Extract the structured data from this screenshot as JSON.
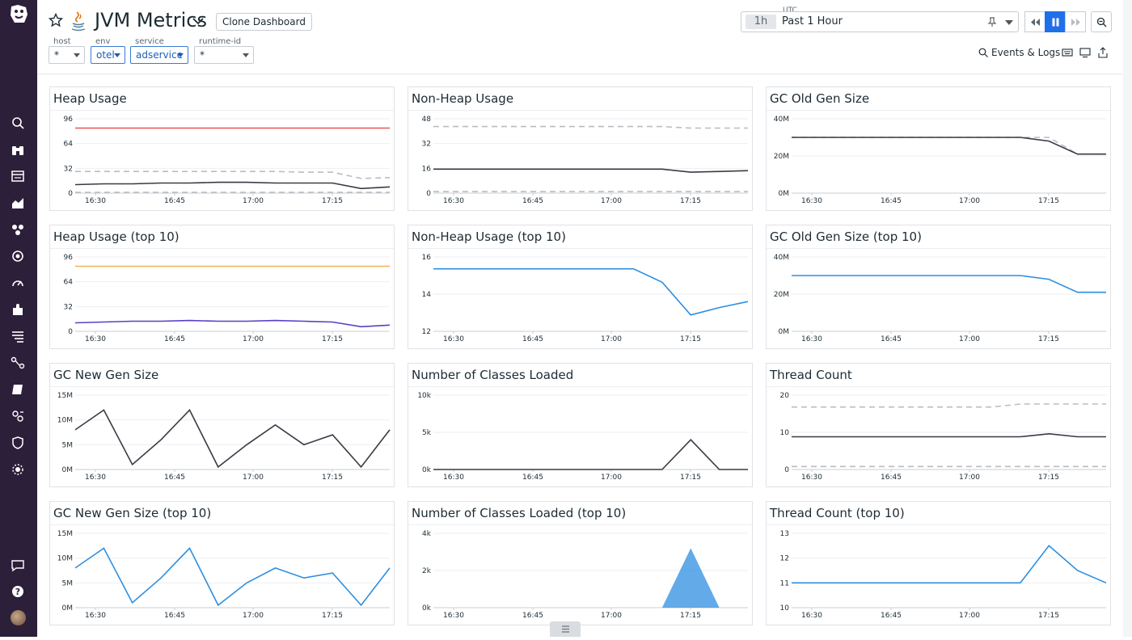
{
  "header": {
    "title": "JVM Metrics",
    "clone_label": "Clone Dashboard",
    "template_vars": [
      {
        "name": "host",
        "value": "*"
      },
      {
        "name": "env",
        "value": "otel"
      },
      {
        "name": "service",
        "value": "adservice"
      },
      {
        "name": "runtime-id",
        "value": "*"
      }
    ],
    "time": {
      "zone": "UTC",
      "short": "1h",
      "range": "Past 1 Hour"
    },
    "events_label": "Events & Logs"
  },
  "colors": {
    "accent": "#1f6feb",
    "sidebar": "#2c1f3a",
    "series_dark": "#3a3a44",
    "series_blue": "#2d8fe0",
    "series_grey": "#b8bcc2",
    "red": "#e8554e",
    "orange": "#f0b35a",
    "purple": "#5b3fc4"
  },
  "icons": [
    "datadog-logo",
    "search-icon",
    "binoculars-icon",
    "list-icon",
    "dashboard-icon",
    "infrastructure-icon",
    "apm-icon",
    "monitor-icon",
    "integrations-icon",
    "logs-icon",
    "network-icon",
    "notebook-icon",
    "synthetics-icon",
    "security-icon",
    "settings-icon",
    "chat-icon",
    "help-icon"
  ],
  "x_ticks": [
    "16:30",
    "16:45",
    "17:00",
    "17:15"
  ],
  "panels": [
    {
      "title": "Heap Usage",
      "chart_data": {
        "type": "line",
        "y_ticks": [
          "96",
          "64",
          "32",
          "0"
        ],
        "ylim": [
          0,
          96
        ],
        "series": [
          {
            "color": "#e8554e",
            "values": [
              84,
              84,
              84,
              84,
              84,
              84,
              84,
              84,
              84,
              84,
              84,
              84
            ]
          },
          {
            "color": "#b8bcc2",
            "dashed": true,
            "values": [
              28,
              28,
              28,
              28,
              28,
              28,
              28,
              28,
              27,
              27,
              19,
              20
            ]
          },
          {
            "color": "#3a3a44",
            "values": [
              11,
              12,
              12,
              13,
              13,
              14,
              14,
              13,
              13,
              13,
              6,
              8
            ]
          },
          {
            "color": "#b8bcc2",
            "dashed": true,
            "values": [
              1,
              1,
              1,
              1,
              1,
              1,
              1,
              1,
              1,
              1,
              1,
              1
            ]
          }
        ]
      }
    },
    {
      "title": "Non-Heap Usage",
      "chart_data": {
        "type": "line",
        "y_ticks": [
          "48",
          "32",
          "16",
          "0"
        ],
        "ylim": [
          0,
          48
        ],
        "series": [
          {
            "color": "#b8bcc2",
            "dashed": true,
            "values": [
              43,
              43,
              43,
              43,
              43,
              43,
              43,
              43,
              43,
              42,
              42,
              42
            ]
          },
          {
            "color": "#3a3a44",
            "values": [
              15.5,
              15.5,
              15.5,
              15.5,
              15.5,
              15.5,
              15.5,
              15.5,
              15.5,
              13.5,
              14,
              14.5
            ]
          },
          {
            "color": "#b8bcc2",
            "dashed": true,
            "values": [
              1,
              1,
              1,
              1,
              1,
              1,
              1,
              1,
              1,
              1,
              1,
              1
            ]
          }
        ]
      }
    },
    {
      "title": "GC Old Gen Size",
      "chart_data": {
        "type": "line",
        "y_ticks": [
          "40M",
          "20M",
          "0M"
        ],
        "ylim": [
          0,
          40
        ],
        "series": [
          {
            "color": "#b8bcc2",
            "dashed": true,
            "values": [
              30,
              30,
              30,
              30,
              30,
              30,
              30,
              30,
              30,
              30,
              21,
              21
            ]
          },
          {
            "color": "#3a3a44",
            "values": [
              30,
              30,
              30,
              30,
              30,
              30,
              30,
              30,
              30,
              28,
              21,
              21
            ]
          }
        ]
      }
    },
    {
      "title": "Heap Usage (top 10)",
      "chart_data": {
        "type": "line",
        "y_ticks": [
          "96",
          "64",
          "32",
          "0"
        ],
        "ylim": [
          0,
          96
        ],
        "series": [
          {
            "color": "#f0b35a",
            "values": [
              84,
              84,
              84,
              84,
              84,
              84,
              84,
              84,
              84,
              84,
              84,
              84
            ]
          },
          {
            "color": "#5b3fc4",
            "values": [
              11,
              12,
              13,
              13,
              14,
              13,
              13,
              14,
              13,
              12,
              6,
              8
            ]
          }
        ]
      }
    },
    {
      "title": "Non-Heap Usage (top 10)",
      "chart_data": {
        "type": "line",
        "y_ticks": [
          "16",
          "14",
          "12"
        ],
        "ylim": [
          11,
          16
        ],
        "series": [
          {
            "color": "#2d8fe0",
            "values": [
              15.2,
              15.2,
              15.2,
              15.2,
              15.2,
              15.2,
              15.2,
              15.2,
              14.3,
              12.1,
              12.6,
              13.0
            ]
          }
        ]
      }
    },
    {
      "title": "GC Old Gen Size (top 10)",
      "chart_data": {
        "type": "line",
        "y_ticks": [
          "40M",
          "20M",
          "0M"
        ],
        "ylim": [
          0,
          40
        ],
        "series": [
          {
            "color": "#2d8fe0",
            "values": [
              30,
              30,
              30,
              30,
              30,
              30,
              30,
              30,
              30,
              28,
              21,
              21
            ]
          }
        ]
      }
    },
    {
      "title": "GC New Gen Size",
      "chart_data": {
        "type": "line",
        "y_ticks": [
          "15M",
          "10M",
          "5M",
          "0M"
        ],
        "ylim": [
          0,
          15
        ],
        "series": [
          {
            "color": "#3a3a44",
            "values": [
              8,
              12,
              1,
              6,
              12,
              0.5,
              5,
              9,
              5,
              7,
              0.5,
              8
            ]
          }
        ]
      }
    },
    {
      "title": "Number of Classes Loaded",
      "chart_data": {
        "type": "line",
        "y_ticks": [
          "10k",
          "5k",
          "0k"
        ],
        "ylim": [
          0,
          10
        ],
        "series": [
          {
            "color": "#3a3a44",
            "values": [
              0,
              0,
              0,
              0,
              0,
              0,
              0,
              0,
              0,
              4,
              0,
              0
            ]
          }
        ]
      }
    },
    {
      "title": "Thread Count",
      "chart_data": {
        "type": "line",
        "y_ticks": [
          "20",
          "10",
          "0"
        ],
        "ylim": [
          0,
          25
        ],
        "series": [
          {
            "color": "#b8bcc2",
            "dashed": true,
            "values": [
              21,
              21,
              21,
              21,
              21,
              21,
              21,
              21,
              22,
              22,
              22,
              22
            ]
          },
          {
            "color": "#3a3a44",
            "values": [
              11,
              11,
              11,
              11,
              11,
              11,
              11,
              11,
              11,
              12,
              11,
              11
            ]
          },
          {
            "color": "#b8bcc2",
            "dashed": true,
            "values": [
              1,
              1,
              1,
              1,
              1,
              1,
              1,
              1,
              1,
              1,
              1,
              1
            ]
          }
        ]
      }
    },
    {
      "title": "GC New Gen Size (top 10)",
      "chart_data": {
        "type": "line",
        "y_ticks": [
          "15M",
          "10M",
          "5M",
          "0M"
        ],
        "ylim": [
          0,
          15
        ],
        "series": [
          {
            "color": "#2d8fe0",
            "values": [
              8,
              12,
              1,
              6,
              12,
              0.5,
              5,
              8,
              6,
              7,
              0.5,
              8
            ]
          }
        ]
      }
    },
    {
      "title": "Number of Classes Loaded (top 10)",
      "chart_data": {
        "type": "area",
        "y_ticks": [
          "4k",
          "2k",
          "0k"
        ],
        "ylim": [
          0,
          5
        ],
        "series": [
          {
            "color": "#2d8fe0",
            "values": [
              0,
              0,
              0,
              0,
              0,
              0,
              0,
              0,
              0,
              4,
              0,
              0
            ]
          }
        ]
      }
    },
    {
      "title": "Thread Count (top 10)",
      "chart_data": {
        "type": "line",
        "y_ticks": [
          "13",
          "12",
          "11",
          "10"
        ],
        "ylim": [
          10,
          13
        ],
        "series": [
          {
            "color": "#2d8fe0",
            "values": [
              11,
              11,
              11,
              11,
              11,
              11,
              11,
              11,
              11,
              12.5,
              11.5,
              11
            ]
          }
        ]
      }
    }
  ]
}
